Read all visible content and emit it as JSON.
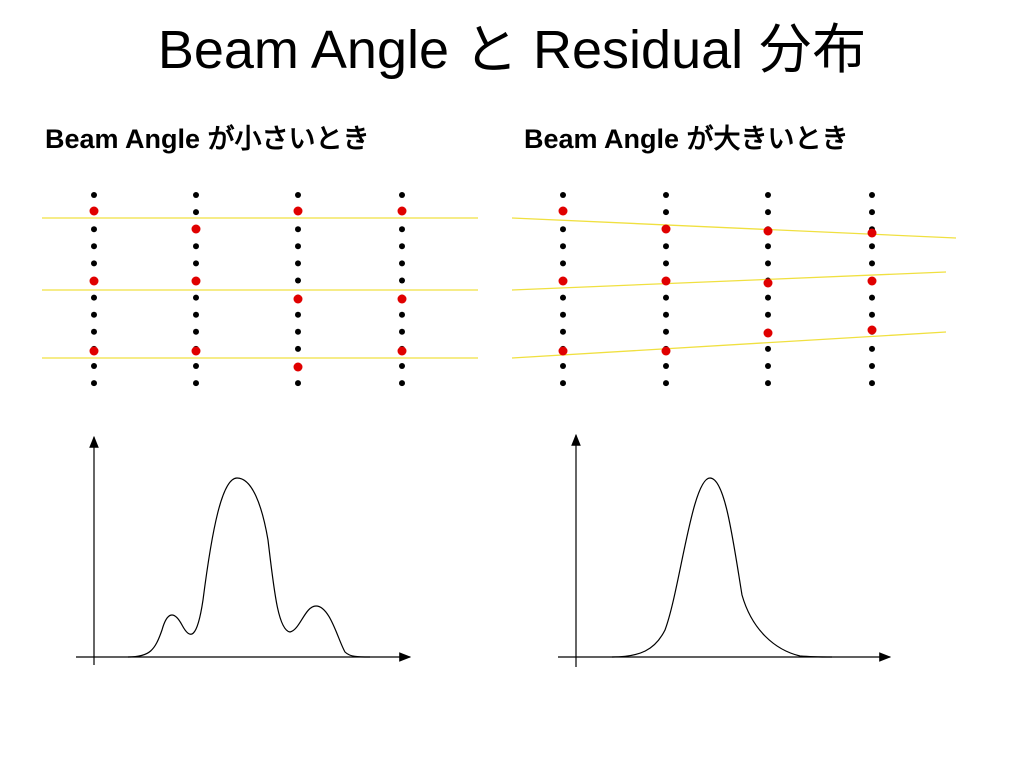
{
  "title": "Beam Angle と Residual 分布",
  "panels": [
    {
      "label": "Beam Angle が小さいとき"
    },
    {
      "label": "Beam Angle が大きいとき"
    }
  ]
}
